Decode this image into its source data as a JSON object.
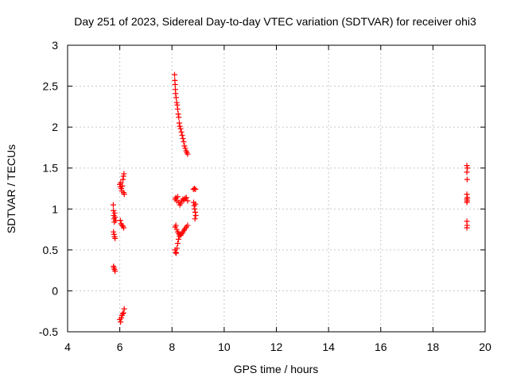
{
  "chart_data": {
    "type": "scatter",
    "title": "Day 251 of 2023, Sidereal Day-to-day VTEC variation (SDTVAR) for receiver ohi3",
    "xlabel": "GPS time / hours",
    "ylabel": "SDTVAR / TECUs",
    "xlim": [
      4,
      20
    ],
    "ylim": [
      -0.5,
      3
    ],
    "xticks": [
      4,
      6,
      8,
      10,
      12,
      14,
      16,
      18,
      20
    ],
    "yticks": [
      -0.5,
      0,
      0.5,
      1,
      1.5,
      2,
      2.5,
      3
    ],
    "xtick_labels": [
      "4",
      "6",
      "8",
      "10",
      "12",
      "14",
      "16",
      "18",
      "20"
    ],
    "ytick_labels": [
      "-0.5",
      "0",
      "0.5",
      "1",
      "1.5",
      "2",
      "2.5",
      "3"
    ],
    "grid": true,
    "marker": "+",
    "marker_color": "#ff0000",
    "series": [
      {
        "name": "SDTVAR",
        "points": [
          [
            5.75,
            1.05
          ],
          [
            5.76,
            0.98
          ],
          [
            5.77,
            0.92
          ],
          [
            5.78,
            0.88
          ],
          [
            5.79,
            0.84
          ],
          [
            5.8,
            0.95
          ],
          [
            5.82,
            0.9
          ],
          [
            5.84,
            0.86
          ],
          [
            5.76,
            0.72
          ],
          [
            5.78,
            0.69
          ],
          [
            5.8,
            0.66
          ],
          [
            5.82,
            0.64
          ],
          [
            5.76,
            0.3
          ],
          [
            5.78,
            0.28
          ],
          [
            5.8,
            0.26
          ],
          [
            5.82,
            0.24
          ],
          [
            6.0,
            1.3
          ],
          [
            6.02,
            1.27
          ],
          [
            6.04,
            1.32
          ],
          [
            6.06,
            1.25
          ],
          [
            6.08,
            1.22
          ],
          [
            6.1,
            1.28
          ],
          [
            6.12,
            1.36
          ],
          [
            6.14,
            1.4
          ],
          [
            6.16,
            1.43
          ],
          [
            6.15,
            1.2
          ],
          [
            6.17,
            1.18
          ],
          [
            6.02,
            0.86
          ],
          [
            6.05,
            0.82
          ],
          [
            6.08,
            0.8
          ],
          [
            6.12,
            0.79
          ],
          [
            6.15,
            0.77
          ],
          [
            6.0,
            -0.35
          ],
          [
            6.03,
            -0.38
          ],
          [
            6.06,
            -0.33
          ],
          [
            6.08,
            -0.3
          ],
          [
            6.11,
            -0.28
          ],
          [
            6.14,
            -0.27
          ],
          [
            6.17,
            -0.22
          ],
          [
            8.1,
            2.64
          ],
          [
            8.11,
            2.57
          ],
          [
            8.12,
            2.52
          ],
          [
            8.13,
            2.46
          ],
          [
            8.14,
            2.41
          ],
          [
            8.16,
            2.36
          ],
          [
            8.18,
            2.3
          ],
          [
            8.2,
            2.27
          ],
          [
            8.22,
            2.22
          ],
          [
            8.24,
            2.16
          ],
          [
            8.26,
            2.12
          ],
          [
            8.28,
            2.05
          ],
          [
            8.3,
            2.01
          ],
          [
            8.33,
            1.98
          ],
          [
            8.36,
            1.94
          ],
          [
            8.39,
            1.9
          ],
          [
            8.42,
            1.86
          ],
          [
            8.45,
            1.82
          ],
          [
            8.48,
            1.77
          ],
          [
            8.51,
            1.74
          ],
          [
            8.54,
            1.71
          ],
          [
            8.57,
            1.69
          ],
          [
            8.6,
            1.67
          ],
          [
            8.12,
            1.12
          ],
          [
            8.15,
            1.14
          ],
          [
            8.18,
            1.1
          ],
          [
            8.22,
            1.15
          ],
          [
            8.26,
            1.08
          ],
          [
            8.3,
            1.05
          ],
          [
            8.34,
            1.07
          ],
          [
            8.38,
            1.1
          ],
          [
            8.42,
            1.12
          ],
          [
            8.46,
            1.11
          ],
          [
            8.5,
            1.13
          ],
          [
            8.55,
            1.14
          ],
          [
            8.6,
            1.1
          ],
          [
            8.12,
            0.78
          ],
          [
            8.15,
            0.8
          ],
          [
            8.18,
            0.75
          ],
          [
            8.22,
            0.72
          ],
          [
            8.26,
            0.7
          ],
          [
            8.3,
            0.69
          ],
          [
            8.34,
            0.68
          ],
          [
            8.38,
            0.7
          ],
          [
            8.42,
            0.72
          ],
          [
            8.46,
            0.74
          ],
          [
            8.5,
            0.76
          ],
          [
            8.55,
            0.78
          ],
          [
            8.6,
            0.8
          ],
          [
            8.12,
            0.5
          ],
          [
            8.14,
            0.47
          ],
          [
            8.16,
            0.46
          ],
          [
            8.19,
            0.52
          ],
          [
            8.22,
            0.58
          ],
          [
            8.25,
            0.63
          ],
          [
            8.28,
            0.67
          ],
          [
            8.82,
            1.24
          ],
          [
            8.86,
            1.25
          ],
          [
            8.9,
            1.24
          ],
          [
            8.83,
            1.08
          ],
          [
            8.85,
            1.04
          ],
          [
            8.87,
            1.0
          ],
          [
            8.89,
            0.96
          ],
          [
            8.91,
            0.92
          ],
          [
            8.88,
            0.88
          ],
          [
            8.9,
            1.06
          ],
          [
            19.3,
            1.53
          ],
          [
            19.32,
            1.5
          ],
          [
            19.3,
            1.45
          ],
          [
            19.31,
            1.36
          ],
          [
            19.3,
            1.18
          ],
          [
            19.32,
            1.14
          ],
          [
            19.3,
            1.12
          ],
          [
            19.31,
            1.1
          ],
          [
            19.3,
            1.08
          ],
          [
            19.3,
            0.85
          ],
          [
            19.31,
            0.8
          ],
          [
            19.3,
            0.77
          ]
        ]
      }
    ]
  }
}
